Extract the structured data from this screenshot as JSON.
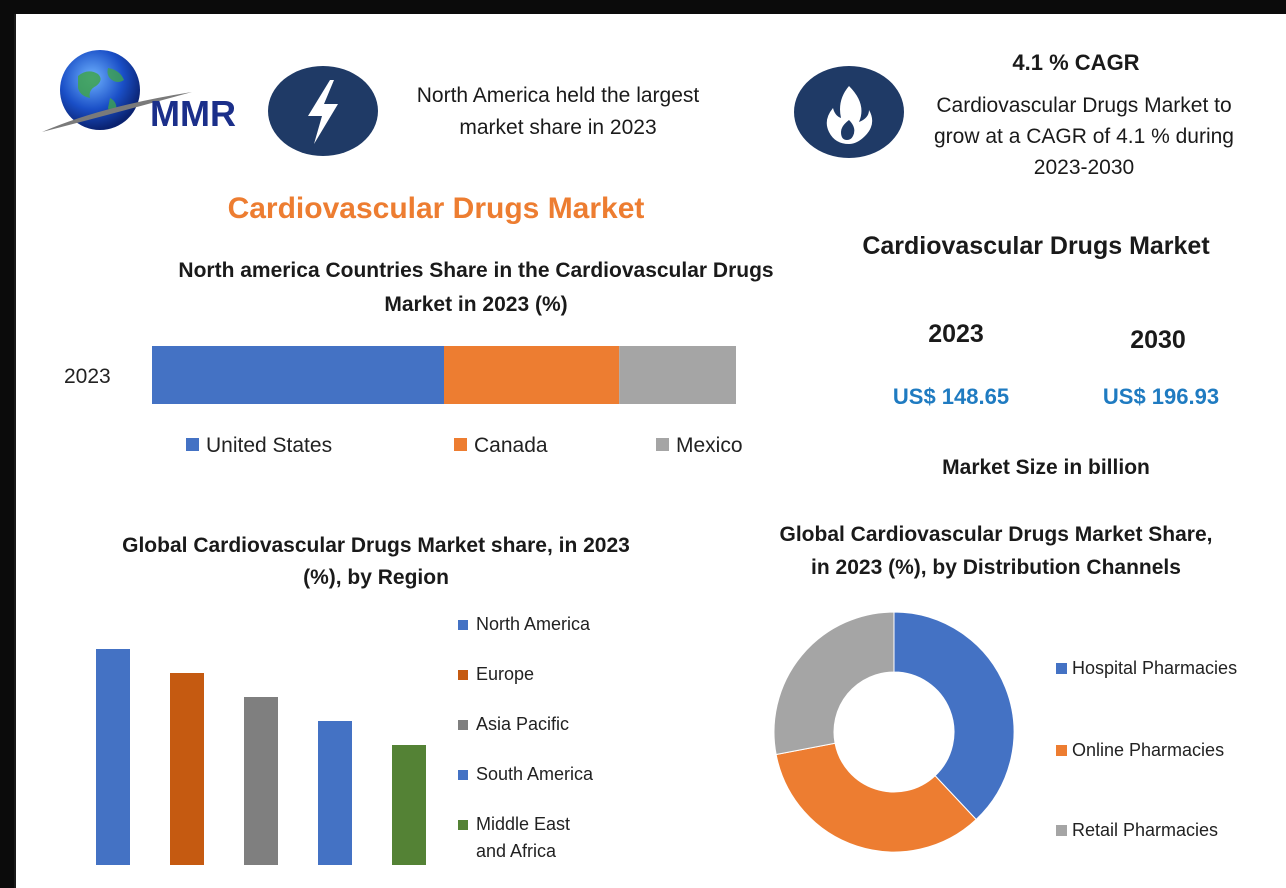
{
  "logo": {
    "text": "MMR"
  },
  "header": {
    "left_callout": {
      "icon": "lightning-icon",
      "text": "North America held the largest market share in 2023"
    },
    "right_callout": {
      "icon": "flame-icon",
      "heading": "4.1 % CAGR",
      "text": "Cardiovascular Drugs Market to grow at a CAGR of 4.1 % during 2023-2030"
    }
  },
  "main_title": "Cardiovascular Drugs Market",
  "market_size": {
    "title": "Cardiovascular Drugs Market",
    "year_a": "2023",
    "value_a": "US$ 148.65",
    "year_b": "2030",
    "value_b": "US$ 196.93",
    "caption": "Market Size in billion"
  },
  "colors": {
    "accent_orange": "#ed7d31",
    "navy": "#1f3a66",
    "value_blue": "#1f7bc1"
  },
  "chart_data": [
    {
      "type": "bar",
      "orientation": "horizontal-stacked",
      "title": "North america Countries Share in the  Cardiovascular Drugs Market in 2023 (%)",
      "categories": [
        "2023"
      ],
      "series": [
        {
          "name": "United States",
          "values": [
            50
          ],
          "color": "#4472c4"
        },
        {
          "name": "Canada",
          "values": [
            30
          ],
          "color": "#ed7d31"
        },
        {
          "name": "Mexico",
          "values": [
            20
          ],
          "color": "#a5a5a5"
        }
      ],
      "legend": "bottom",
      "grid": false
    },
    {
      "type": "bar",
      "title": "Global Cardiovascular Drugs Market share, in 2023 (%), by Region",
      "categories": [
        "North America",
        "Europe",
        "Asia Pacific",
        "South America",
        "Middle East and Africa"
      ],
      "values": [
        36,
        32,
        28,
        24,
        20
      ],
      "colors": [
        "#4472c4",
        "#c55a11",
        "#7f7f7f",
        "#4472c4",
        "#548235"
      ],
      "ylim": [
        0,
        40
      ],
      "legend": "right",
      "legend_lines": [
        [
          "North America"
        ],
        [
          "Europe"
        ],
        [
          "Asia Pacific"
        ],
        [
          "South America"
        ],
        [
          "Middle East",
          "and Africa"
        ]
      ],
      "grid": false
    },
    {
      "type": "pie",
      "variant": "donut",
      "title": "Global Cardiovascular Drugs Market Share, in 2023 (%), by Distribution Channels",
      "categories": [
        "Hospital Pharmacies",
        "Online Pharmacies",
        "Retail Pharmacies"
      ],
      "values": [
        38,
        34,
        28
      ],
      "colors": [
        "#4472c4",
        "#ed7d31",
        "#a5a5a5"
      ],
      "legend": "right"
    }
  ]
}
